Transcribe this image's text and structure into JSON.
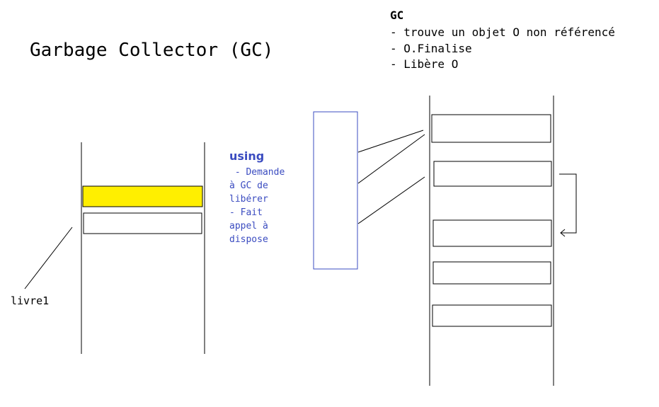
{
  "title": "Garbage Collector (GC)",
  "gc_box": {
    "title": "GC",
    "steps": [
      "- trouve un objet O non référencé",
      "- O.Finalise",
      "- Libère O"
    ]
  },
  "using_note": {
    "title": "using",
    "lines": [
      " - Demande",
      "à GC de",
      "libérer",
      "- Fait",
      "appel à",
      "dispose"
    ]
  },
  "variable_label": "livre1",
  "colors": {
    "highlight": "#ffef00",
    "reference_box": "#3b4cc0",
    "note_text": "#3b4cc0"
  }
}
